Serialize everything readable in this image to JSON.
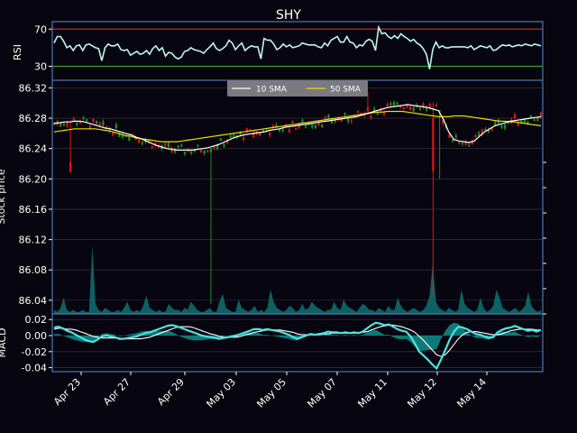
{
  "colors": {
    "background": "#07050f",
    "frame": "#5b8dd6",
    "grid": "#3a3a4a",
    "text": "#ffffff",
    "rsi_line": "#bff5f0",
    "rsi_upper": "#c0282a",
    "rsi_lower": "#39a02e",
    "candle_up": "#1f8f1f",
    "candle_down": "#e01616",
    "sma10": "#ffffff",
    "sma50": "#e8e000",
    "volume": "#0e6b6b",
    "macd": "#4de3e3",
    "macd_signal": "#ffffff",
    "macd_hist": "#0f8f8a",
    "legend_bg": "#7a7a80"
  },
  "chart_data": [
    {
      "type": "line",
      "title": "SHY",
      "ylabel": "RSI",
      "yticks": [
        70,
        30
      ],
      "ylim": [
        15,
        78
      ],
      "thresholds": [
        70,
        30
      ],
      "grid": true,
      "series": [
        {
          "values": [
            55,
            62,
            62,
            57,
            50,
            52,
            47,
            52,
            53,
            47,
            53,
            54,
            52,
            50,
            49,
            36,
            50,
            54,
            52,
            52,
            54,
            48,
            47,
            48,
            42,
            44,
            46,
            43,
            44,
            47,
            43,
            49,
            52,
            47,
            50,
            41,
            45,
            44,
            40,
            38,
            40,
            46,
            47,
            50,
            48,
            47,
            46,
            44,
            48,
            51,
            55,
            49,
            47,
            49,
            52,
            58,
            55,
            48,
            52,
            55,
            47,
            50,
            52,
            51,
            51,
            38,
            60,
            58,
            58,
            54,
            48,
            50,
            54,
            51,
            53,
            50,
            51,
            52,
            55,
            54,
            53,
            53,
            53,
            51,
            50,
            55,
            52,
            58,
            60,
            62,
            56,
            56,
            62,
            56,
            55,
            50,
            53,
            52,
            57,
            59,
            57,
            47,
            72,
            65,
            66,
            62,
            60,
            63,
            60,
            65,
            62,
            60,
            57,
            59,
            55,
            53,
            49,
            43,
            27,
            48,
            56,
            50,
            52,
            50,
            50,
            51,
            51,
            51,
            51,
            51,
            50,
            52,
            48,
            50,
            52,
            51,
            50,
            52,
            47,
            48,
            51,
            53,
            52,
            53,
            51,
            52,
            53,
            52,
            54,
            53,
            52,
            54,
            53,
            52
          ]
        }
      ]
    },
    {
      "type": "candlestick",
      "ylabel": "Stock price",
      "yticks": [
        86.32,
        86.28,
        86.24,
        86.2,
        86.16,
        86.12,
        86.08,
        86.04
      ],
      "ylim": [
        86.022,
        86.33
      ],
      "legend_position": "top-center",
      "grid": true,
      "xticks": [
        "Apr 23",
        "Apr 27",
        "Apr 29",
        "May 03",
        "May 05",
        "May 07",
        "May 11",
        "May 12",
        "May 14"
      ],
      "series": [
        {
          "name": "10 SMA",
          "values": [
            86.273,
            86.274,
            86.275,
            86.275,
            86.276,
            86.276,
            86.275,
            86.273,
            86.271,
            86.269,
            86.267,
            86.266,
            86.264,
            86.262,
            86.26,
            86.258,
            86.255,
            86.253,
            86.25,
            86.247,
            86.244,
            86.242,
            86.24,
            86.239,
            86.238,
            86.238,
            86.238,
            86.238,
            86.239,
            86.24,
            86.241,
            86.243,
            86.245,
            86.248,
            86.251,
            86.254,
            86.256,
            86.258,
            86.259,
            86.26,
            86.261,
            86.262,
            86.264,
            86.265,
            86.266,
            86.268,
            86.269,
            86.27,
            86.271,
            86.272,
            86.273,
            86.274,
            86.275,
            86.276,
            86.277,
            86.278,
            86.279,
            86.28,
            86.281,
            86.282,
            86.284,
            86.286,
            86.288,
            86.29,
            86.292,
            86.294,
            86.295,
            86.296,
            86.297,
            86.298,
            86.297,
            86.296,
            86.295,
            86.294,
            86.292,
            86.29,
            86.278,
            86.262,
            86.252,
            86.25,
            86.249,
            86.248,
            86.25,
            86.256,
            86.262,
            86.266,
            86.27,
            86.272,
            86.274,
            86.276,
            86.277,
            86.278,
            86.279,
            86.28,
            86.281,
            86.282
          ]
        },
        {
          "name": "50 SMA",
          "values": [
            86.262,
            86.263,
            86.264,
            86.265,
            86.266,
            86.266,
            86.266,
            86.266,
            86.266,
            86.265,
            86.264,
            86.263,
            86.261,
            86.259,
            86.257,
            86.256,
            86.254,
            86.253,
            86.252,
            86.251,
            86.25,
            86.249,
            86.249,
            86.249,
            86.249,
            86.25,
            86.251,
            86.252,
            86.253,
            86.254,
            86.255,
            86.256,
            86.257,
            86.258,
            86.259,
            86.26,
            86.261,
            86.262,
            86.263,
            86.264,
            86.265,
            86.266,
            86.267,
            86.268,
            86.269,
            86.27,
            86.271,
            86.272,
            86.273,
            86.274,
            86.275,
            86.276,
            86.277,
            86.278,
            86.279,
            86.28,
            86.281,
            86.282,
            86.283,
            86.284,
            86.285,
            86.286,
            86.287,
            86.288,
            86.288,
            86.289,
            86.289,
            86.289,
            86.289,
            86.288,
            86.287,
            86.286,
            86.285,
            86.284,
            86.283,
            86.282,
            86.282,
            86.282,
            86.283,
            86.283,
            86.283,
            86.282,
            86.281,
            86.28,
            86.279,
            86.278,
            86.277,
            86.276,
            86.276,
            86.275,
            86.275,
            86.274,
            86.273,
            86.272,
            86.271,
            86.27
          ]
        }
      ]
    },
    {
      "type": "area",
      "name": "volume",
      "values": [
        2,
        1,
        3,
        8,
        2,
        1,
        2,
        1,
        1,
        2,
        1,
        1,
        34,
        5,
        2,
        1,
        3,
        2,
        1,
        1,
        2,
        1,
        3,
        6,
        2,
        1,
        2,
        1,
        4,
        9,
        3,
        2,
        1,
        2,
        1,
        1,
        5,
        3,
        2,
        2,
        1,
        3,
        2,
        6,
        4,
        2,
        1,
        1,
        2,
        3,
        1,
        1,
        6,
        10,
        3,
        2,
        1,
        1,
        7,
        3,
        2,
        1,
        2,
        4,
        1,
        2,
        1,
        3,
        12,
        6,
        3,
        2,
        1,
        2,
        4,
        3,
        1,
        2,
        5,
        2,
        3,
        6,
        4,
        3,
        2,
        1,
        2,
        2,
        6,
        3,
        2,
        7,
        4,
        3,
        2,
        1,
        3,
        5,
        4,
        2,
        2,
        1,
        3,
        2,
        1,
        4,
        2,
        2,
        8,
        4,
        2,
        1,
        2,
        3,
        2,
        1,
        2,
        4,
        9,
        25,
        6,
        3,
        2,
        1,
        3,
        2,
        1,
        2,
        12,
        5,
        3,
        2,
        1,
        2,
        8,
        3,
        1,
        2,
        4,
        12,
        8,
        3,
        2,
        1,
        2,
        3,
        1,
        2,
        4,
        11,
        4,
        2,
        1,
        2
      ]
    },
    {
      "type": "line",
      "ylabel": "MACD",
      "yticks": [
        0.02,
        0.0,
        -0.02,
        -0.04
      ],
      "ylim": [
        -0.045,
        0.027
      ],
      "grid": true,
      "series": [
        {
          "values": [
            0.01,
            0.011,
            0.009,
            0.006,
            0.004,
            0.001,
            -0.002,
            -0.005,
            -0.007,
            -0.008,
            -0.005,
            -0.001,
            0.0,
            -0.001,
            -0.002,
            -0.004,
            -0.004,
            -0.003,
            -0.002,
            -0.001,
            0.001,
            0.003,
            0.004,
            0.006,
            0.008,
            0.01,
            0.012,
            0.013,
            0.012,
            0.01,
            0.008,
            0.006,
            0.004,
            0.002,
            0.0,
            -0.001,
            -0.002,
            -0.003,
            -0.004,
            -0.003,
            -0.002,
            -0.001,
            0.0,
            0.002,
            0.004,
            0.006,
            0.008,
            0.008,
            0.007,
            0.008,
            0.007,
            0.006,
            0.005,
            0.003,
            0.001,
            -0.002,
            -0.004,
            -0.002,
            0.0,
            0.002,
            0.001,
            0.002,
            0.003,
            0.005,
            0.004,
            0.004,
            0.003,
            0.004,
            0.003,
            0.004,
            0.003,
            0.005,
            0.009,
            0.013,
            0.016,
            0.015,
            0.013,
            0.014,
            0.011,
            0.008,
            0.006,
            0.005,
            -0.001,
            -0.01,
            -0.02,
            -0.025,
            -0.03,
            -0.036,
            -0.041,
            -0.03,
            -0.018,
            -0.005,
            0.005,
            0.011,
            0.01,
            0.008,
            0.005,
            0.002,
            0.001,
            -0.001,
            -0.003,
            -0.002,
            0.004,
            0.007,
            0.009,
            0.01,
            0.012,
            0.01,
            0.008,
            0.006,
            0.007,
            0.005,
            0.007
          ]
        },
        {
          "values": [
            0.008,
            0.009,
            0.009,
            0.008,
            0.008,
            0.007,
            0.005,
            0.003,
            0.001,
            -0.001,
            -0.002,
            -0.003,
            -0.003,
            -0.003,
            -0.003,
            -0.003,
            -0.004,
            -0.004,
            -0.004,
            -0.004,
            -0.004,
            -0.003,
            -0.002,
            0.0,
            0.002,
            0.004,
            0.006,
            0.008,
            0.01,
            0.011,
            0.011,
            0.011,
            0.01,
            0.008,
            0.006,
            0.004,
            0.002,
            0.001,
            -0.001,
            -0.002,
            -0.002,
            -0.002,
            -0.002,
            -0.001,
            0.001,
            0.002,
            0.004,
            0.005,
            0.006,
            0.007,
            0.007,
            0.007,
            0.007,
            0.006,
            0.005,
            0.004,
            0.002,
            0.001,
            0.001,
            0.001,
            0.001,
            0.001,
            0.002,
            0.002,
            0.003,
            0.003,
            0.003,
            0.003,
            0.003,
            0.003,
            0.003,
            0.004,
            0.005,
            0.007,
            0.009,
            0.011,
            0.012,
            0.013,
            0.013,
            0.012,
            0.011,
            0.009,
            0.007,
            0.004,
            -0.001,
            -0.006,
            -0.012,
            -0.018,
            -0.024,
            -0.026,
            -0.024,
            -0.018,
            -0.011,
            -0.004,
            0.001,
            0.004,
            0.005,
            0.005,
            0.004,
            0.003,
            0.002,
            0.001,
            0.001,
            0.002,
            0.004,
            0.006,
            0.007,
            0.008,
            0.008,
            0.008,
            0.008,
            0.007,
            0.007
          ]
        }
      ]
    }
  ]
}
